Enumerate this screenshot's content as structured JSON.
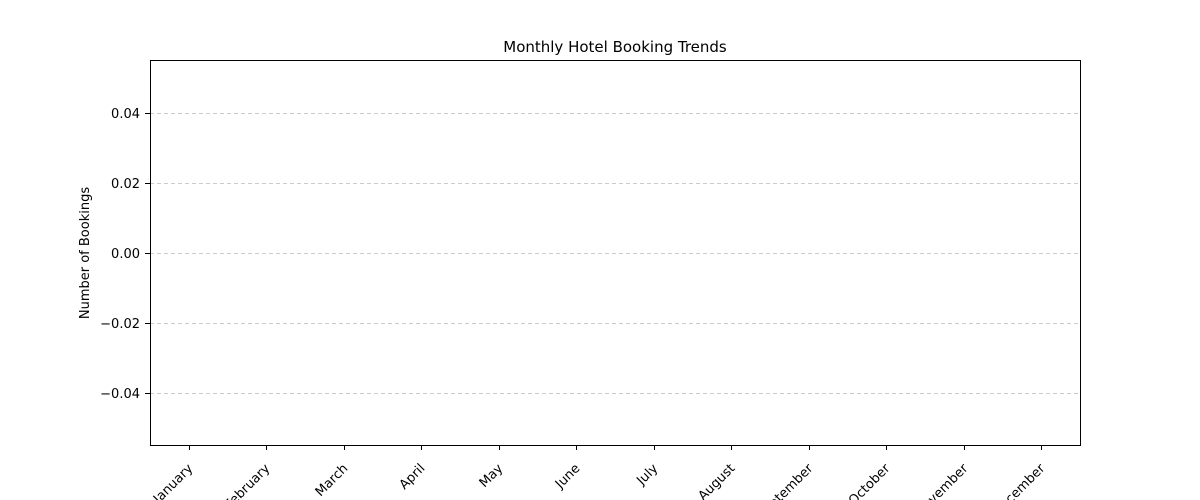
{
  "chart_data": {
    "type": "line",
    "title": "Monthly Hotel Booking Trends",
    "xlabel": "",
    "ylabel": "Number of Bookings",
    "categories": [
      "January",
      "February",
      "March",
      "April",
      "May",
      "June",
      "July",
      "August",
      "September",
      "October",
      "November",
      "December"
    ],
    "series": [],
    "ylim": [
      -0.055,
      0.055
    ],
    "yticks": [
      0.04,
      0.02,
      0.0,
      -0.02,
      -0.04
    ],
    "ytick_labels": [
      "0.04",
      "0.02",
      "0.00",
      "−0.02",
      "−0.04"
    ],
    "grid": true,
    "grid_axis": "y",
    "legend": "none"
  }
}
